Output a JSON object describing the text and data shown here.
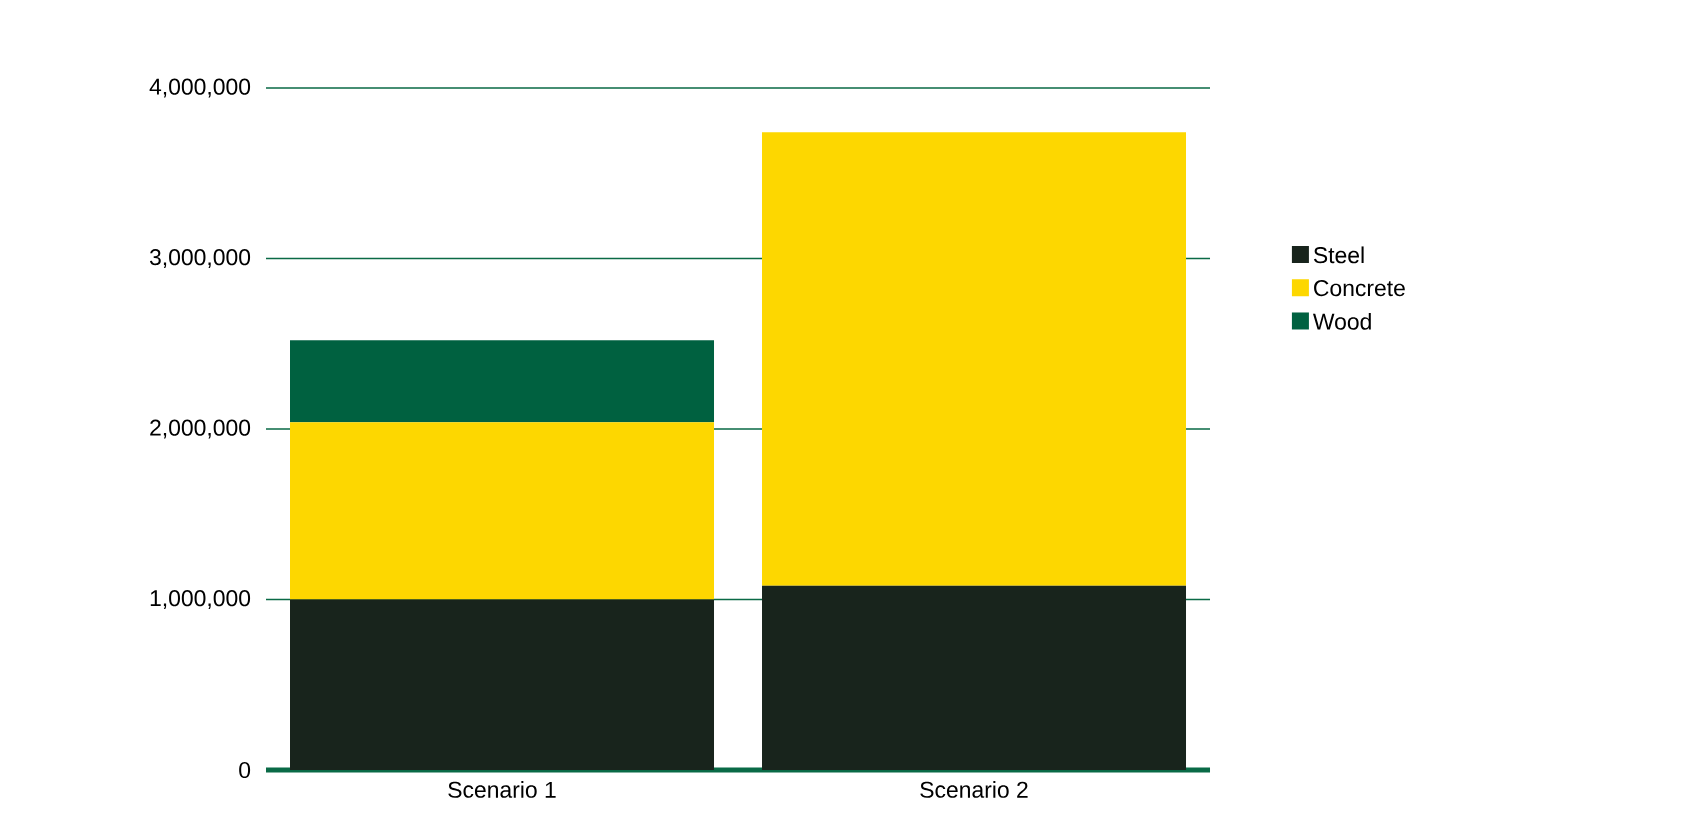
{
  "chart_data": {
    "type": "bar",
    "stacked": true,
    "categories": [
      "Scenario 1",
      "Scenario 2"
    ],
    "series": [
      {
        "name": "Steel",
        "color": "#18241c",
        "values": [
          1000000,
          1080000
        ]
      },
      {
        "name": "Concrete",
        "color": "#fdd700",
        "values": [
          1040000,
          2660000
        ]
      },
      {
        "name": "Wood",
        "color": "#006140",
        "values": [
          480000,
          0
        ]
      }
    ],
    "ylim": [
      0,
      4000000
    ],
    "yticks": [
      {
        "value": 0,
        "label": "0"
      },
      {
        "value": 1000000,
        "label": "1,000,000"
      },
      {
        "value": 2000000,
        "label": "2,000,000"
      },
      {
        "value": 3000000,
        "label": "3,000,000"
      },
      {
        "value": 4000000,
        "label": "4,000,000"
      }
    ],
    "grid": "y",
    "legend": "right"
  }
}
